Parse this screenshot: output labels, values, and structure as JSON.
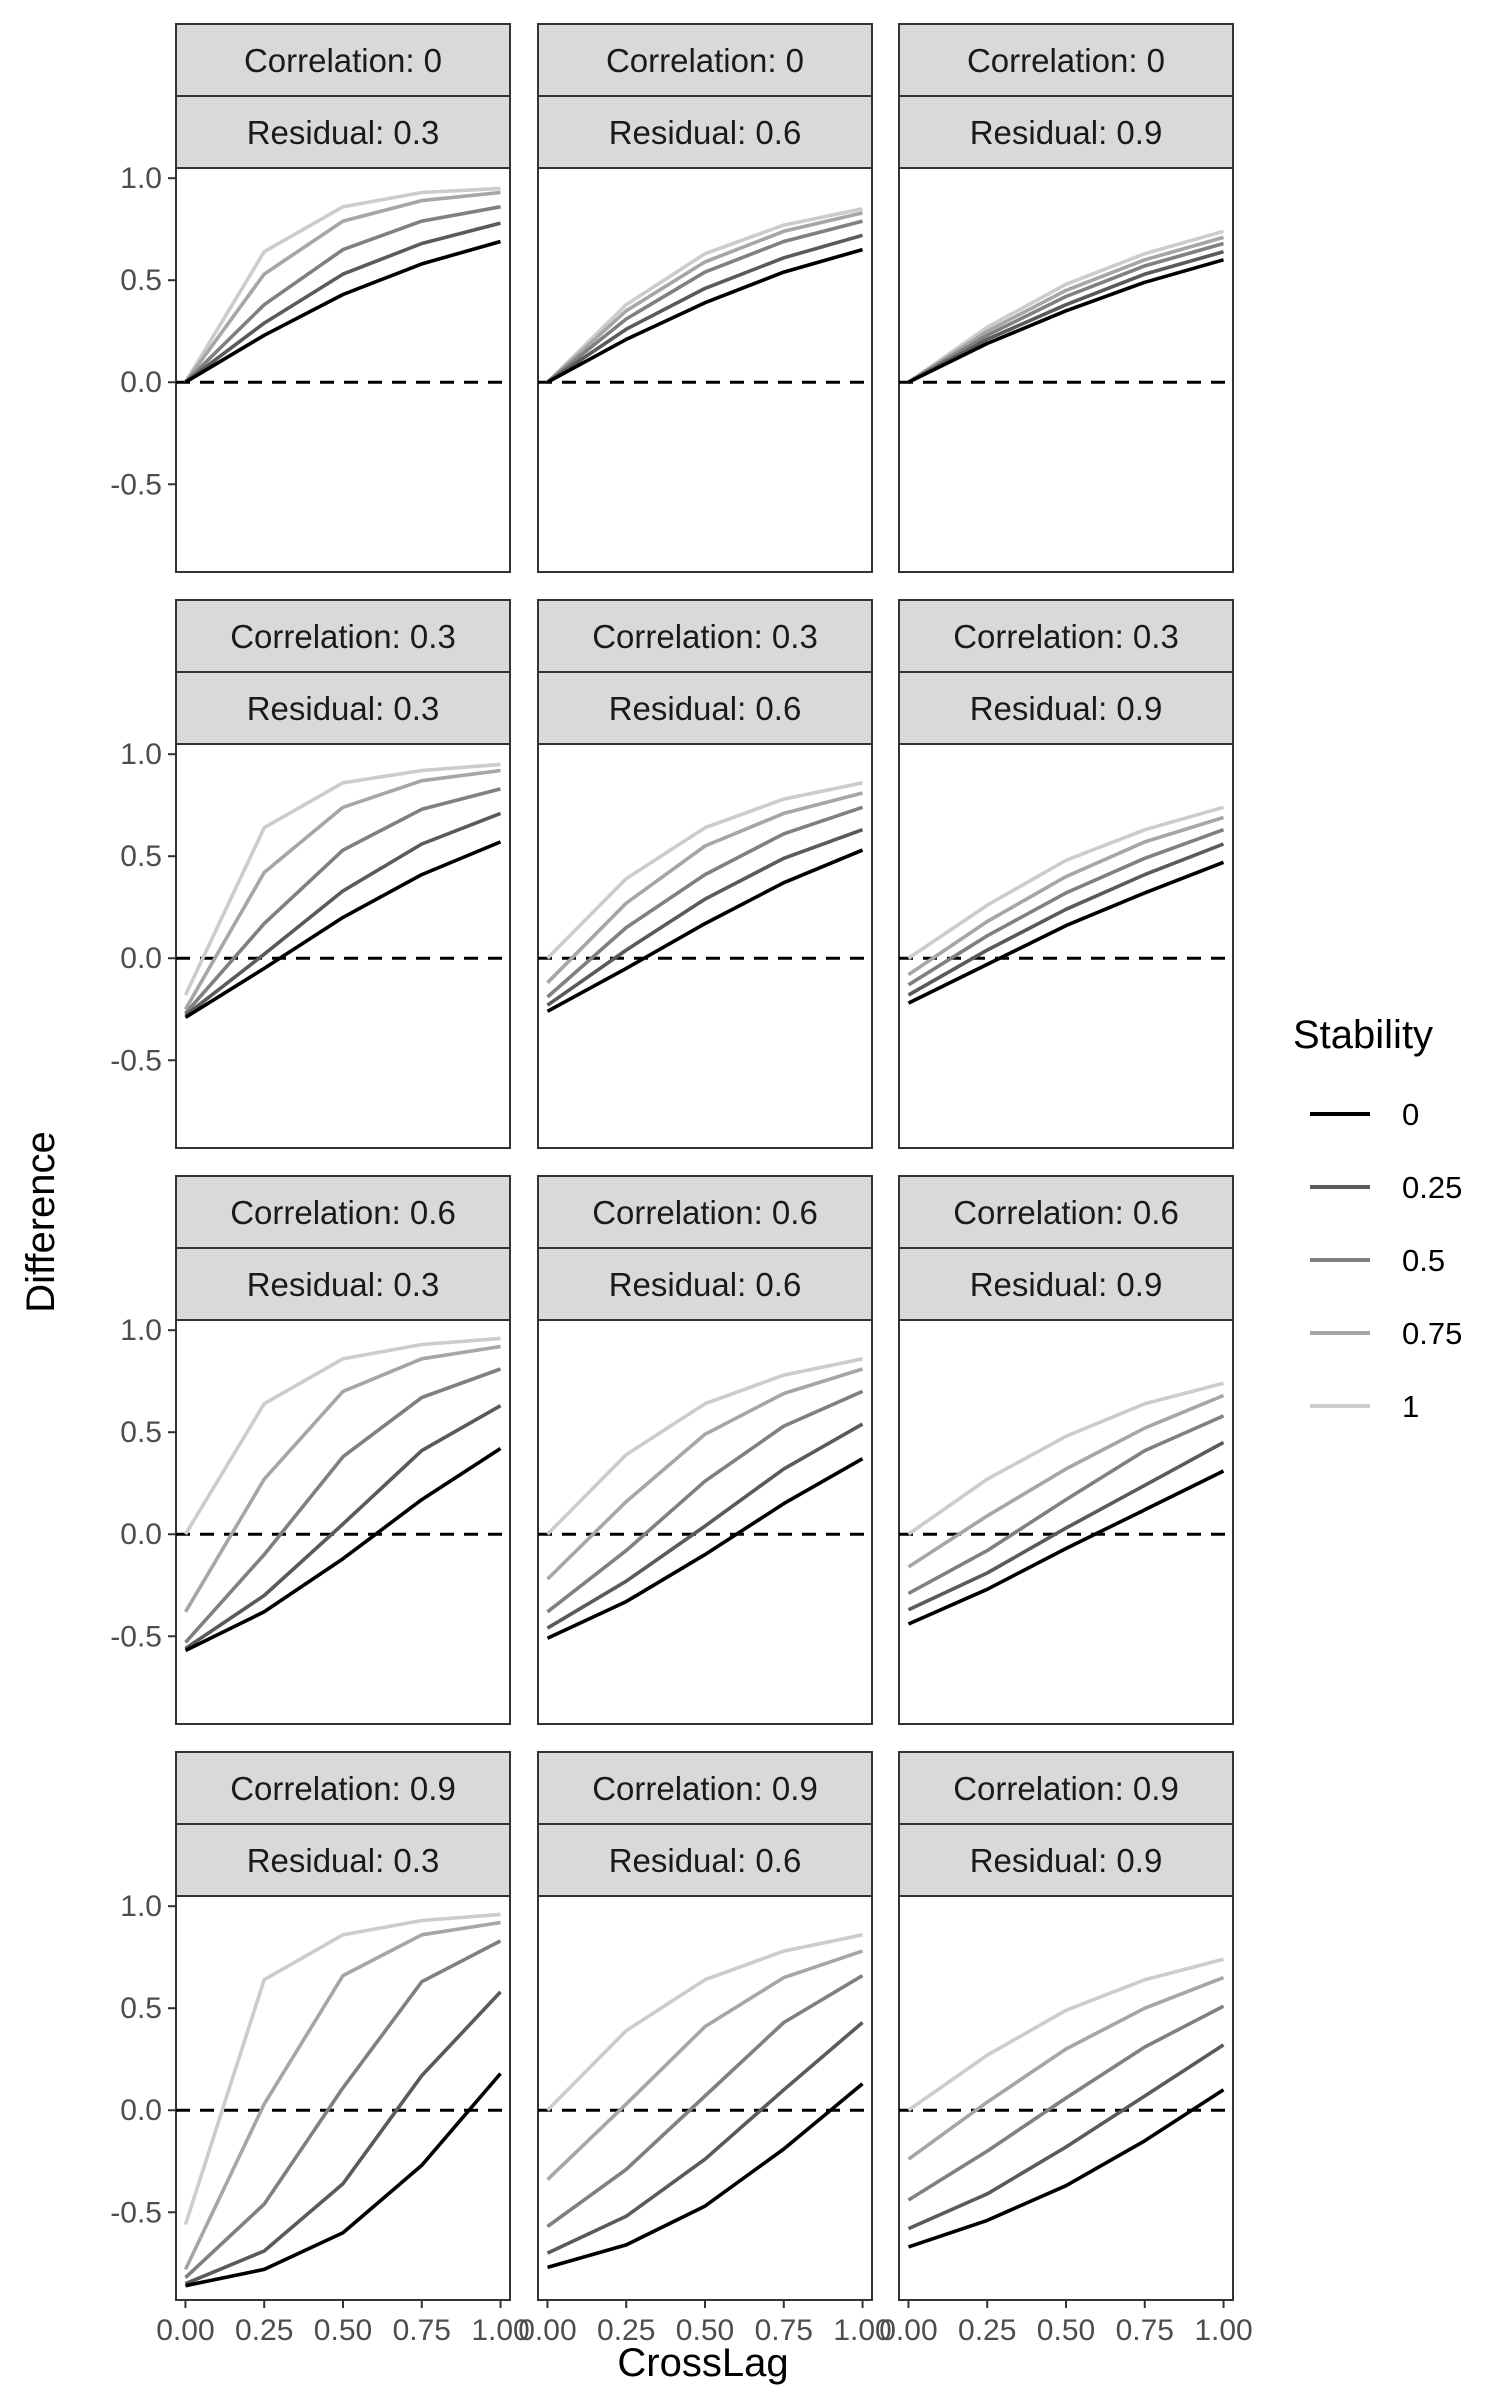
{
  "chart_data": {
    "type": "line",
    "xlabel": "CrossLag",
    "ylabel": "Difference",
    "x": [
      0,
      0.25,
      0.5,
      0.75,
      1.0
    ],
    "x_tick_labels": [
      "0.00",
      "0.25",
      "0.50",
      "0.75",
      "1.00"
    ],
    "xlim": [
      -0.03,
      1.03
    ],
    "y_ticks": [
      1.0,
      0.5,
      0.0,
      -0.5
    ],
    "y_tick_labels": [
      "1.0",
      "0.5",
      "0.0",
      "-0.5"
    ],
    "ylim": [
      -0.93,
      1.05
    ],
    "reference_line": {
      "y": 0,
      "style": "dashed"
    },
    "legend": {
      "title": "Stability",
      "position": "right",
      "entries": [
        "0",
        "0.25",
        "0.5",
        "0.75",
        "1"
      ],
      "colors": [
        "#000000",
        "#5a5a5a",
        "#808080",
        "#a6a6a6",
        "#cccccc"
      ]
    },
    "grid": false,
    "panels": [
      {
        "correlation": "Correlation: 0",
        "residual": "Residual: 0.3",
        "series": [
          {
            "name": "0",
            "values": [
              0,
              0.23,
              0.43,
              0.58,
              0.69
            ]
          },
          {
            "name": "0.25",
            "values": [
              0,
              0.29,
              0.53,
              0.68,
              0.78
            ]
          },
          {
            "name": "0.5",
            "values": [
              0,
              0.38,
              0.65,
              0.79,
              0.86
            ]
          },
          {
            "name": "0.75",
            "values": [
              0,
              0.53,
              0.79,
              0.89,
              0.93
            ]
          },
          {
            "name": "1",
            "values": [
              0,
              0.64,
              0.86,
              0.93,
              0.95
            ]
          }
        ]
      },
      {
        "correlation": "Correlation: 0",
        "residual": "Residual: 0.6",
        "series": [
          {
            "name": "0",
            "values": [
              0,
              0.21,
              0.39,
              0.54,
              0.65
            ]
          },
          {
            "name": "0.25",
            "values": [
              0,
              0.26,
              0.46,
              0.61,
              0.72
            ]
          },
          {
            "name": "0.5",
            "values": [
              0,
              0.31,
              0.54,
              0.69,
              0.79
            ]
          },
          {
            "name": "0.75",
            "values": [
              0,
              0.35,
              0.59,
              0.74,
              0.83
            ]
          },
          {
            "name": "1",
            "values": [
              0,
              0.38,
              0.63,
              0.77,
              0.85
            ]
          }
        ]
      },
      {
        "correlation": "Correlation: 0",
        "residual": "Residual: 0.9",
        "series": [
          {
            "name": "0",
            "values": [
              0,
              0.19,
              0.35,
              0.49,
              0.6
            ]
          },
          {
            "name": "0.25",
            "values": [
              0,
              0.21,
              0.38,
              0.53,
              0.64
            ]
          },
          {
            "name": "0.5",
            "values": [
              0,
              0.23,
              0.42,
              0.57,
              0.68
            ]
          },
          {
            "name": "0.75",
            "values": [
              0,
              0.25,
              0.45,
              0.6,
              0.71
            ]
          },
          {
            "name": "1",
            "values": [
              0,
              0.27,
              0.48,
              0.63,
              0.74
            ]
          }
        ]
      },
      {
        "correlation": "Correlation: 0.3",
        "residual": "Residual: 0.3",
        "series": [
          {
            "name": "0",
            "values": [
              -0.29,
              -0.05,
              0.2,
              0.41,
              0.57
            ]
          },
          {
            "name": "0.25",
            "values": [
              -0.28,
              0.02,
              0.33,
              0.56,
              0.71
            ]
          },
          {
            "name": "0.5",
            "values": [
              -0.27,
              0.17,
              0.53,
              0.73,
              0.83
            ]
          },
          {
            "name": "0.75",
            "values": [
              -0.25,
              0.42,
              0.74,
              0.87,
              0.92
            ]
          },
          {
            "name": "1",
            "values": [
              -0.18,
              0.64,
              0.86,
              0.92,
              0.95
            ]
          }
        ]
      },
      {
        "correlation": "Correlation: 0.3",
        "residual": "Residual: 0.6",
        "series": [
          {
            "name": "0",
            "values": [
              -0.26,
              -0.05,
              0.17,
              0.37,
              0.53
            ]
          },
          {
            "name": "0.25",
            "values": [
              -0.23,
              0.04,
              0.29,
              0.49,
              0.63
            ]
          },
          {
            "name": "0.5",
            "values": [
              -0.19,
              0.15,
              0.41,
              0.61,
              0.74
            ]
          },
          {
            "name": "0.75",
            "values": [
              -0.12,
              0.27,
              0.55,
              0.71,
              0.81
            ]
          },
          {
            "name": "1",
            "values": [
              0.0,
              0.39,
              0.64,
              0.78,
              0.86
            ]
          }
        ]
      },
      {
        "correlation": "Correlation: 0.3",
        "residual": "Residual: 0.9",
        "series": [
          {
            "name": "0",
            "values": [
              -0.22,
              -0.03,
              0.16,
              0.32,
              0.47
            ]
          },
          {
            "name": "0.25",
            "values": [
              -0.18,
              0.04,
              0.24,
              0.41,
              0.56
            ]
          },
          {
            "name": "0.5",
            "values": [
              -0.13,
              0.11,
              0.32,
              0.49,
              0.63
            ]
          },
          {
            "name": "0.75",
            "values": [
              -0.08,
              0.18,
              0.4,
              0.57,
              0.69
            ]
          },
          {
            "name": "1",
            "values": [
              0.0,
              0.26,
              0.48,
              0.63,
              0.74
            ]
          }
        ]
      },
      {
        "correlation": "Correlation: 0.6",
        "residual": "Residual: 0.3",
        "series": [
          {
            "name": "0",
            "values": [
              -0.57,
              -0.38,
              -0.12,
              0.17,
              0.42
            ]
          },
          {
            "name": "0.25",
            "values": [
              -0.56,
              -0.3,
              0.05,
              0.41,
              0.63
            ]
          },
          {
            "name": "0.5",
            "values": [
              -0.53,
              -0.1,
              0.38,
              0.67,
              0.81
            ]
          },
          {
            "name": "0.75",
            "values": [
              -0.38,
              0.27,
              0.7,
              0.86,
              0.92
            ]
          },
          {
            "name": "1",
            "values": [
              0.0,
              0.64,
              0.86,
              0.93,
              0.96
            ]
          }
        ]
      },
      {
        "correlation": "Correlation: 0.6",
        "residual": "Residual: 0.6",
        "series": [
          {
            "name": "0",
            "values": [
              -0.51,
              -0.33,
              -0.1,
              0.15,
              0.37
            ]
          },
          {
            "name": "0.25",
            "values": [
              -0.46,
              -0.23,
              0.04,
              0.32,
              0.54
            ]
          },
          {
            "name": "0.5",
            "values": [
              -0.38,
              -0.08,
              0.26,
              0.53,
              0.7
            ]
          },
          {
            "name": "0.75",
            "values": [
              -0.22,
              0.16,
              0.49,
              0.69,
              0.81
            ]
          },
          {
            "name": "1",
            "values": [
              0.0,
              0.39,
              0.64,
              0.78,
              0.86
            ]
          }
        ]
      },
      {
        "correlation": "Correlation: 0.6",
        "residual": "Residual: 0.9",
        "series": [
          {
            "name": "0",
            "values": [
              -0.44,
              -0.27,
              -0.07,
              0.12,
              0.31
            ]
          },
          {
            "name": "0.25",
            "values": [
              -0.37,
              -0.19,
              0.03,
              0.24,
              0.45
            ]
          },
          {
            "name": "0.5",
            "values": [
              -0.29,
              -0.08,
              0.17,
              0.41,
              0.58
            ]
          },
          {
            "name": "0.75",
            "values": [
              -0.16,
              0.09,
              0.32,
              0.52,
              0.68
            ]
          },
          {
            "name": "1",
            "values": [
              0.0,
              0.27,
              0.48,
              0.64,
              0.74
            ]
          }
        ]
      },
      {
        "correlation": "Correlation: 0.9",
        "residual": "Residual: 0.3",
        "series": [
          {
            "name": "0",
            "values": [
              -0.86,
              -0.78,
              -0.6,
              -0.27,
              0.18
            ]
          },
          {
            "name": "0.25",
            "values": [
              -0.85,
              -0.69,
              -0.36,
              0.17,
              0.58
            ]
          },
          {
            "name": "0.5",
            "values": [
              -0.82,
              -0.46,
              0.11,
              0.63,
              0.83
            ]
          },
          {
            "name": "0.75",
            "values": [
              -0.78,
              0.03,
              0.66,
              0.86,
              0.92
            ]
          },
          {
            "name": "1",
            "values": [
              -0.56,
              0.64,
              0.86,
              0.93,
              0.96
            ]
          }
        ]
      },
      {
        "correlation": "Correlation: 0.9",
        "residual": "Residual: 0.6",
        "series": [
          {
            "name": "0",
            "values": [
              -0.77,
              -0.66,
              -0.47,
              -0.19,
              0.13
            ]
          },
          {
            "name": "0.25",
            "values": [
              -0.7,
              -0.52,
              -0.24,
              0.1,
              0.43
            ]
          },
          {
            "name": "0.5",
            "values": [
              -0.57,
              -0.29,
              0.07,
              0.43,
              0.66
            ]
          },
          {
            "name": "0.75",
            "values": [
              -0.34,
              0.03,
              0.41,
              0.65,
              0.78
            ]
          },
          {
            "name": "1",
            "values": [
              0.0,
              0.39,
              0.64,
              0.78,
              0.86
            ]
          }
        ]
      },
      {
        "correlation": "Correlation: 0.9",
        "residual": "Residual: 0.9",
        "series": [
          {
            "name": "0",
            "values": [
              -0.67,
              -0.54,
              -0.37,
              -0.15,
              0.1
            ]
          },
          {
            "name": "0.25",
            "values": [
              -0.58,
              -0.41,
              -0.18,
              0.07,
              0.32
            ]
          },
          {
            "name": "0.5",
            "values": [
              -0.44,
              -0.2,
              0.06,
              0.31,
              0.51
            ]
          },
          {
            "name": "0.75",
            "values": [
              -0.24,
              0.04,
              0.3,
              0.5,
              0.65
            ]
          },
          {
            "name": "1",
            "values": [
              0.0,
              0.27,
              0.49,
              0.64,
              0.74
            ]
          }
        ]
      }
    ]
  }
}
